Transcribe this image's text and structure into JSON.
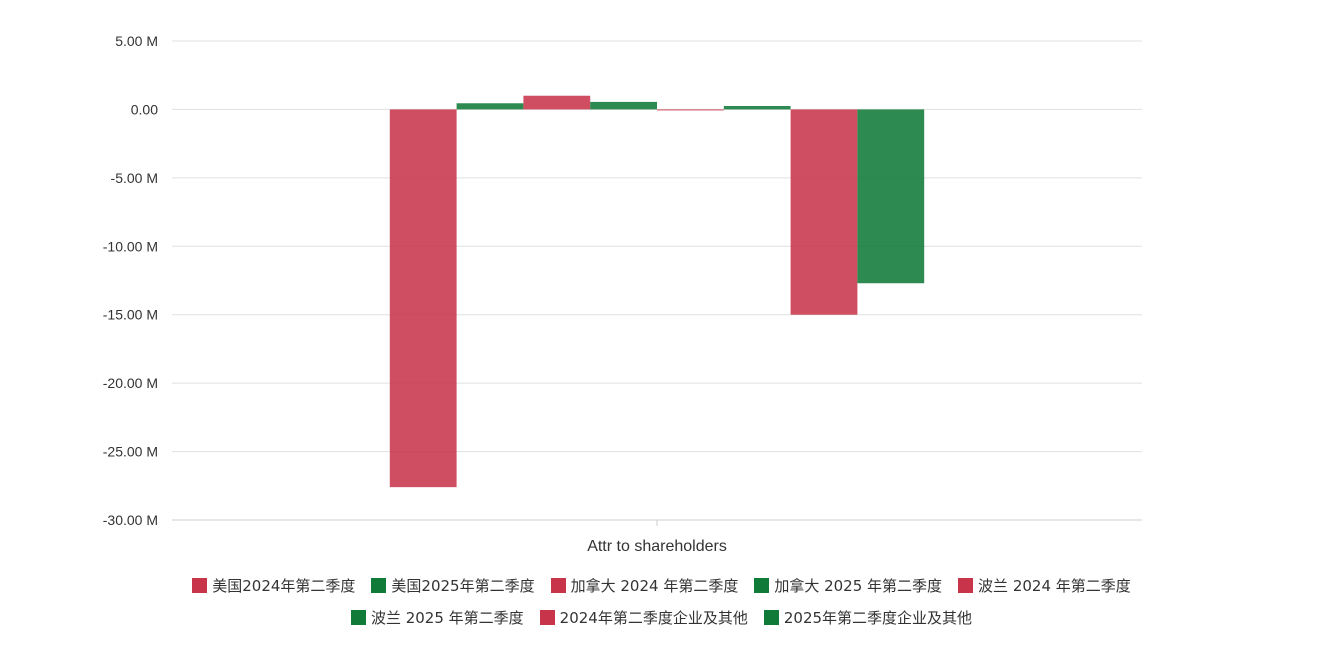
{
  "chart_data": {
    "type": "bar",
    "categories": [
      "Attr to shareholders"
    ],
    "y_ticks": [
      "5.00 M",
      "0.00",
      "-5.00 M",
      "-10.00 M",
      "-15.00 M",
      "-20.00 M",
      "-25.00 M",
      "-30.00 M"
    ],
    "ylim": [
      -30,
      5
    ],
    "grid": true,
    "legend_position": "bottom",
    "series": [
      {
        "name": "美国2024年第二季度",
        "values": [
          -27.6
        ],
        "color": "#c8354b"
      },
      {
        "name": "美国2025年第二季度",
        "values": [
          0.45
        ],
        "color": "#107a38"
      },
      {
        "name": "加拿大 2024 年第二季度",
        "values": [
          1.0
        ],
        "color": "#c8354b"
      },
      {
        "name": "加拿大 2025 年第二季度",
        "values": [
          0.55
        ],
        "color": "#107a38"
      },
      {
        "name": "波兰 2024 年第二季度",
        "values": [
          -0.05
        ],
        "color": "#c8354b"
      },
      {
        "name": "波兰 2025 年第二季度",
        "values": [
          0.25
        ],
        "color": "#107a38"
      },
      {
        "name": "2024年第二季度企业及其他",
        "values": [
          -15.0
        ],
        "color": "#c8354b"
      },
      {
        "name": "2025年第二季度企业及其他",
        "values": [
          -12.7
        ],
        "color": "#107a38"
      }
    ]
  }
}
